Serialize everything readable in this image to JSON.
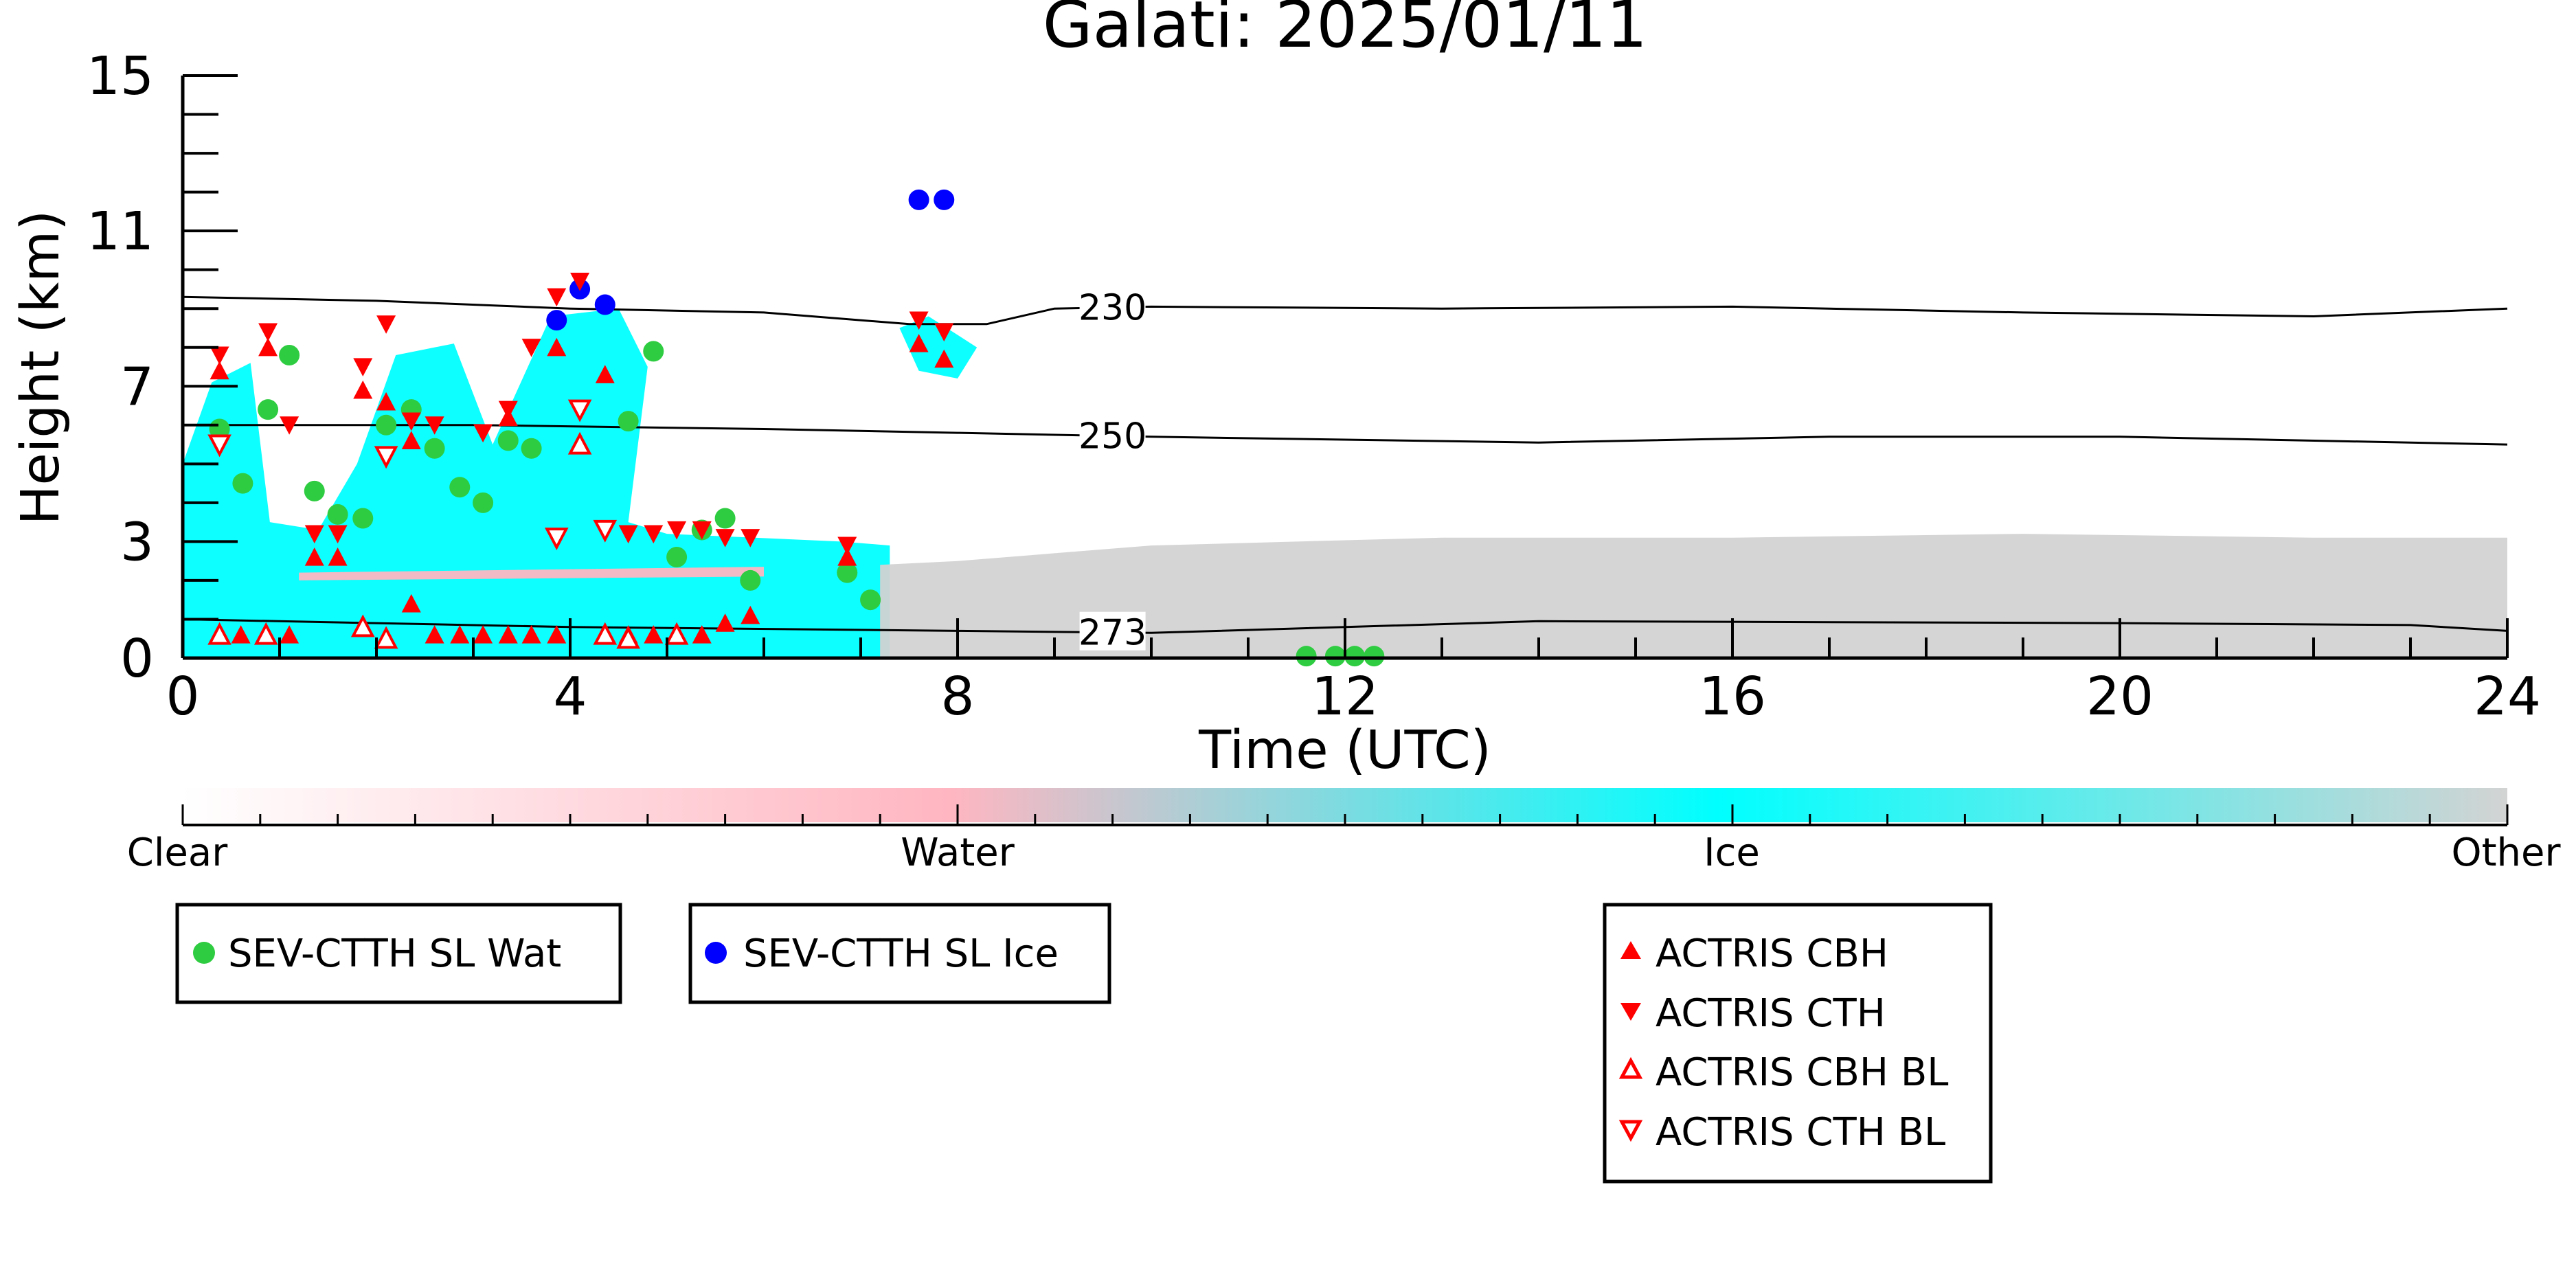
{
  "chart_data": {
    "type": "scatter",
    "title": "Galati: 2025/01/11",
    "xlabel": "Time (UTC)",
    "ylabel": "Height (km)",
    "xlim": [
      0,
      24
    ],
    "ylim": [
      0,
      15
    ],
    "xticks": [
      0,
      4,
      8,
      12,
      16,
      20,
      24
    ],
    "yticks": [
      0,
      3,
      7,
      11,
      15
    ],
    "colorbar": {
      "labels": [
        "Clear",
        "Water",
        "Ice",
        "Other"
      ],
      "colors": [
        "#ffffff",
        "#ffb6c1",
        "#00ffff",
        "#d3d3d3"
      ]
    },
    "contours": [
      {
        "label": "230",
        "label_x": 9.6,
        "points": [
          [
            0,
            9.3
          ],
          [
            2,
            9.2
          ],
          [
            4,
            9.0
          ],
          [
            6,
            8.9
          ],
          [
            7.5,
            8.6
          ],
          [
            8.3,
            8.6
          ],
          [
            9,
            9.0
          ],
          [
            10,
            9.05
          ],
          [
            13,
            9.0
          ],
          [
            16,
            9.05
          ],
          [
            19,
            8.9
          ],
          [
            22,
            8.8
          ],
          [
            24,
            9.0
          ]
        ]
      },
      {
        "label": "250",
        "label_x": 9.6,
        "points": [
          [
            0,
            6.0
          ],
          [
            3,
            6.0
          ],
          [
            6,
            5.9
          ],
          [
            8,
            5.8
          ],
          [
            10,
            5.7
          ],
          [
            14,
            5.55
          ],
          [
            17,
            5.7
          ],
          [
            20,
            5.7
          ],
          [
            24,
            5.5
          ]
        ]
      },
      {
        "label": "273",
        "label_x": 9.6,
        "points": [
          [
            0,
            1.0
          ],
          [
            4,
            0.8
          ],
          [
            8,
            0.7
          ],
          [
            10,
            0.65
          ],
          [
            14,
            0.95
          ],
          [
            20,
            0.9
          ],
          [
            23,
            0.85
          ],
          [
            24,
            0.7
          ]
        ]
      }
    ],
    "cloud_cover": [
      {
        "class": "Ice",
        "color": "#00ffff",
        "region": [
          [
            0,
            0
          ],
          [
            0,
            5.0
          ],
          [
            0.3,
            7.1
          ],
          [
            0.7,
            7.6
          ],
          [
            0.9,
            3.5
          ],
          [
            1.4,
            3.3
          ],
          [
            1.8,
            5.0
          ],
          [
            2.2,
            7.8
          ],
          [
            2.8,
            8.1
          ],
          [
            3.2,
            5.5
          ],
          [
            3.8,
            8.8
          ],
          [
            4.5,
            9.0
          ],
          [
            4.8,
            7.5
          ],
          [
            4.6,
            3.5
          ],
          [
            5.0,
            3.2
          ],
          [
            6.8,
            3.0
          ],
          [
            7.3,
            2.9
          ],
          [
            7.3,
            0
          ],
          [
            0,
            0
          ]
        ]
      },
      {
        "class": "Ice",
        "color": "#00ffff",
        "region": [
          [
            7.4,
            8.5
          ],
          [
            7.7,
            8.8
          ],
          [
            8.2,
            8.0
          ],
          [
            8.0,
            7.2
          ],
          [
            7.6,
            7.4
          ],
          [
            7.4,
            8.5
          ]
        ]
      },
      {
        "class": "Water",
        "color": "#ffb6c1",
        "region": [
          [
            1.2,
            2.2
          ],
          [
            6.0,
            2.35
          ],
          [
            6.0,
            2.1
          ],
          [
            1.2,
            2.0
          ],
          [
            1.2,
            2.2
          ]
        ]
      },
      {
        "class": "Other",
        "color": "#d3d3d3",
        "region": [
          [
            7.2,
            0
          ],
          [
            7.2,
            2.4
          ],
          [
            8.0,
            2.5
          ],
          [
            10,
            2.9
          ],
          [
            13,
            3.1
          ],
          [
            16,
            3.1
          ],
          [
            19,
            3.2
          ],
          [
            22,
            3.1
          ],
          [
            24,
            3.1
          ],
          [
            24,
            0
          ],
          [
            7.2,
            0
          ]
        ]
      }
    ],
    "series": [
      {
        "name": "SEV-CTTH SL Wat",
        "marker": "circle",
        "color": "#2ecc40",
        "points": [
          [
            0.38,
            5.9
          ],
          [
            0.62,
            4.5
          ],
          [
            0.88,
            6.4
          ],
          [
            1.1,
            7.8
          ],
          [
            1.36,
            4.3
          ],
          [
            1.6,
            3.7
          ],
          [
            1.86,
            3.6
          ],
          [
            2.1,
            6.0
          ],
          [
            2.36,
            6.4
          ],
          [
            2.6,
            5.4
          ],
          [
            2.86,
            4.4
          ],
          [
            3.1,
            4.0
          ],
          [
            3.36,
            5.6
          ],
          [
            3.6,
            5.4
          ],
          [
            4.6,
            6.1
          ],
          [
            4.86,
            7.9
          ],
          [
            5.1,
            2.6
          ],
          [
            5.36,
            3.3
          ],
          [
            5.6,
            3.6
          ],
          [
            5.86,
            2.0
          ],
          [
            6.86,
            2.2
          ],
          [
            7.1,
            1.5
          ],
          [
            11.6,
            0.05
          ],
          [
            11.9,
            0.05
          ],
          [
            12.1,
            0.05
          ],
          [
            12.3,
            0.05
          ]
        ]
      },
      {
        "name": "SEV-CTTH SL Ice",
        "marker": "circle",
        "color": "#0000ff",
        "points": [
          [
            3.86,
            8.7
          ],
          [
            4.1,
            9.5
          ],
          [
            4.36,
            9.1
          ],
          [
            7.6,
            11.8
          ],
          [
            7.86,
            11.8
          ]
        ]
      }
    ],
    "series_actris": [
      {
        "name": "ACTRIS CBH",
        "marker": "triangle-up",
        "filled": true,
        "color": "#ff0000",
        "points": [
          [
            0.38,
            7.4
          ],
          [
            0.88,
            8.0
          ],
          [
            1.36,
            2.6
          ],
          [
            1.6,
            2.6
          ],
          [
            1.86,
            6.9
          ],
          [
            2.1,
            6.6
          ],
          [
            2.36,
            5.6
          ],
          [
            2.36,
            1.4
          ],
          [
            3.36,
            6.2
          ],
          [
            3.86,
            8.0
          ],
          [
            4.36,
            7.3
          ],
          [
            6.86,
            2.6
          ],
          [
            7.6,
            8.1
          ],
          [
            7.86,
            7.7
          ],
          [
            0.6,
            0.6
          ],
          [
            0.86,
            0.6
          ],
          [
            1.1,
            0.6
          ],
          [
            2.6,
            0.6
          ],
          [
            2.86,
            0.6
          ],
          [
            3.1,
            0.6
          ],
          [
            3.36,
            0.6
          ],
          [
            3.6,
            0.6
          ],
          [
            3.86,
            0.6
          ],
          [
            4.6,
            0.6
          ],
          [
            4.86,
            0.6
          ],
          [
            5.1,
            0.6
          ],
          [
            5.36,
            0.6
          ],
          [
            5.6,
            0.9
          ],
          [
            5.86,
            1.1
          ]
        ]
      },
      {
        "name": "ACTRIS CTH",
        "marker": "triangle-down",
        "filled": true,
        "color": "#ff0000",
        "points": [
          [
            0.38,
            7.8
          ],
          [
            0.88,
            8.4
          ],
          [
            1.1,
            6.0
          ],
          [
            1.36,
            3.2
          ],
          [
            1.6,
            3.2
          ],
          [
            1.86,
            7.5
          ],
          [
            2.1,
            8.6
          ],
          [
            2.36,
            6.1
          ],
          [
            2.6,
            6.0
          ],
          [
            3.1,
            5.8
          ],
          [
            3.36,
            6.4
          ],
          [
            3.6,
            8.0
          ],
          [
            3.86,
            9.3
          ],
          [
            4.1,
            9.7
          ],
          [
            4.6,
            3.2
          ],
          [
            4.86,
            3.2
          ],
          [
            5.1,
            3.3
          ],
          [
            5.36,
            3.3
          ],
          [
            5.6,
            3.1
          ],
          [
            5.86,
            3.1
          ],
          [
            6.86,
            2.9
          ],
          [
            7.6,
            8.7
          ],
          [
            7.86,
            8.4
          ]
        ]
      },
      {
        "name": "ACTRIS CBH BL",
        "marker": "triangle-up",
        "filled": false,
        "color": "#ff0000",
        "points": [
          [
            0.38,
            0.6
          ],
          [
            0.86,
            0.6
          ],
          [
            1.86,
            0.8
          ],
          [
            2.1,
            0.5
          ],
          [
            4.1,
            5.5
          ],
          [
            4.36,
            0.6
          ],
          [
            4.6,
            0.5
          ],
          [
            5.1,
            0.6
          ]
        ]
      },
      {
        "name": "ACTRIS CTH BL",
        "marker": "triangle-down",
        "filled": false,
        "color": "#ff0000",
        "points": [
          [
            0.38,
            5.5
          ],
          [
            2.1,
            5.2
          ],
          [
            3.86,
            3.1
          ],
          [
            4.1,
            6.4
          ],
          [
            4.36,
            3.3
          ]
        ]
      }
    ],
    "legends": [
      {
        "entries": [
          "SEV-CTTH SL Wat"
        ]
      },
      {
        "entries": [
          "SEV-CTTH SL Ice"
        ]
      },
      {
        "entries": [
          "ACTRIS CBH",
          "ACTRIS CTH",
          "ACTRIS CBH BL",
          "ACTRIS CTH BL"
        ]
      }
    ]
  }
}
